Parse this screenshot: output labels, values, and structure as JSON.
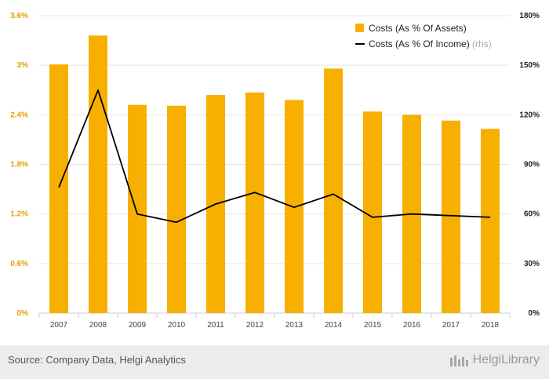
{
  "chart_data": {
    "type": "bar",
    "categories": [
      "2007",
      "2008",
      "2009",
      "2010",
      "2011",
      "2012",
      "2013",
      "2014",
      "2015",
      "2016",
      "2017",
      "2018"
    ],
    "series": [
      {
        "name": "Costs (As % Of Assets)",
        "axis": "left",
        "kind": "bar",
        "color": "#f7b000",
        "values": [
          3.01,
          3.36,
          2.52,
          2.51,
          2.64,
          2.67,
          2.58,
          2.96,
          2.44,
          2.4,
          2.33,
          2.23
        ]
      },
      {
        "name": "Costs (As % Of Income)",
        "axis": "right",
        "kind": "line",
        "color": "#000000",
        "values": [
          76,
          135,
          60,
          55,
          66,
          73,
          64,
          72,
          58,
          60,
          59,
          58
        ]
      }
    ],
    "y_left": {
      "ylim": [
        0,
        3.6
      ],
      "ticks": [
        "0%",
        "0.6%",
        "1.2%",
        "1.8%",
        "2.4%",
        "3%",
        "3.6%"
      ]
    },
    "y_right": {
      "ylim": [
        0,
        180
      ],
      "ticks": [
        "0%",
        "30%",
        "60%",
        "90%",
        "120%",
        "150%",
        "180%"
      ]
    },
    "legend": {
      "placement": "top-right",
      "rhs_suffix": "(rhs)"
    },
    "grid": true
  },
  "footer": {
    "source": "Source: Company Data, Helgi Analytics",
    "brand": "HelgiLibrary"
  }
}
